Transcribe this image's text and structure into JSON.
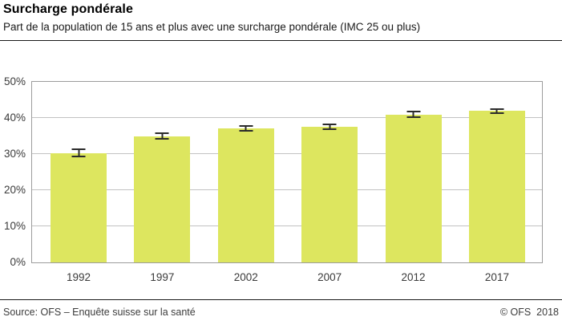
{
  "header": {
    "title": "Surcharge pondérale",
    "subtitle": "Part de la population de 15 ans et plus avec une surcharge pondérale (IMC 25 ou plus)"
  },
  "chart_data": {
    "type": "bar",
    "categories": [
      "1992",
      "1997",
      "2002",
      "2007",
      "2012",
      "2017"
    ],
    "values": [
      30.3,
      34.9,
      37.1,
      37.5,
      41.0,
      41.9
    ],
    "errors": [
      1.2,
      1.0,
      0.9,
      0.9,
      0.9,
      0.8
    ],
    "title": "Surcharge pondérale",
    "xlabel": "",
    "ylabel": "",
    "ylim": [
      0,
      50
    ],
    "yticks": [
      0,
      10,
      20,
      30,
      40,
      50
    ],
    "ytick_suffix": "%",
    "grid": true,
    "legend": "none",
    "bar_color": "#dde65f",
    "error_color": "#2b2b2b",
    "grid_color": "#c2c2c2",
    "border_color": "#9c9c9c"
  },
  "footer": {
    "source": "Source: OFS – Enquête suisse sur la santé",
    "copyright": "© OFS  2018"
  }
}
